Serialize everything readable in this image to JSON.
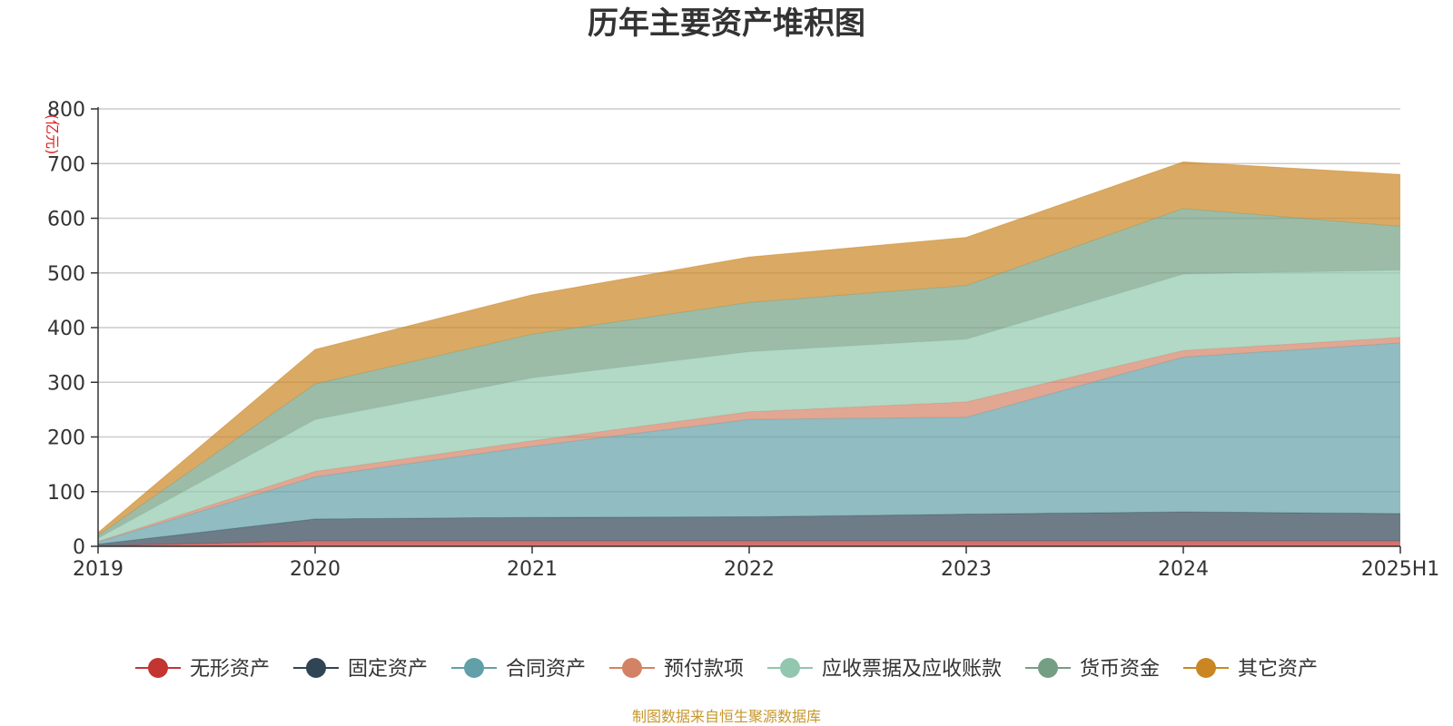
{
  "chart_data": {
    "type": "area",
    "stacked": true,
    "title": "历年主要资产堆积图",
    "unit": "(亿元)",
    "x": [
      "2019",
      "2020",
      "2021",
      "2022",
      "2023",
      "2024",
      "2025H1"
    ],
    "ylim": [
      0,
      800
    ],
    "yticks": [
      "0",
      "100",
      "200",
      "300",
      "400",
      "500",
      "600",
      "700",
      "800"
    ],
    "grid": true,
    "legend_position": "bottom",
    "series": [
      {
        "name": "无形资产",
        "color": "#c23531",
        "values": [
          1,
          10,
          10,
          10,
          10,
          10,
          10
        ]
      },
      {
        "name": "固定资产",
        "color": "#2f4554",
        "values": [
          3,
          40,
          43,
          44,
          49,
          53,
          50
        ]
      },
      {
        "name": "合同资产",
        "color": "#61a0a8",
        "values": [
          4,
          77,
          130,
          178,
          177,
          283,
          312
        ]
      },
      {
        "name": "预付款项",
        "color": "#d48265",
        "values": [
          1,
          10,
          10,
          14,
          28,
          12,
          10
        ]
      },
      {
        "name": "应收票据及应收账款",
        "color": "#91c7ae",
        "values": [
          6,
          95,
          115,
          110,
          115,
          140,
          123
        ]
      },
      {
        "name": "货币资金",
        "color": "#749f83",
        "values": [
          5,
          65,
          80,
          90,
          98,
          120,
          80
        ]
      },
      {
        "name": "其它资产",
        "color": "#ca8622",
        "values": [
          5,
          63,
          72,
          83,
          88,
          85,
          95
        ]
      }
    ]
  },
  "footer": {
    "source": "制图数据来自恒生聚源数据库"
  }
}
